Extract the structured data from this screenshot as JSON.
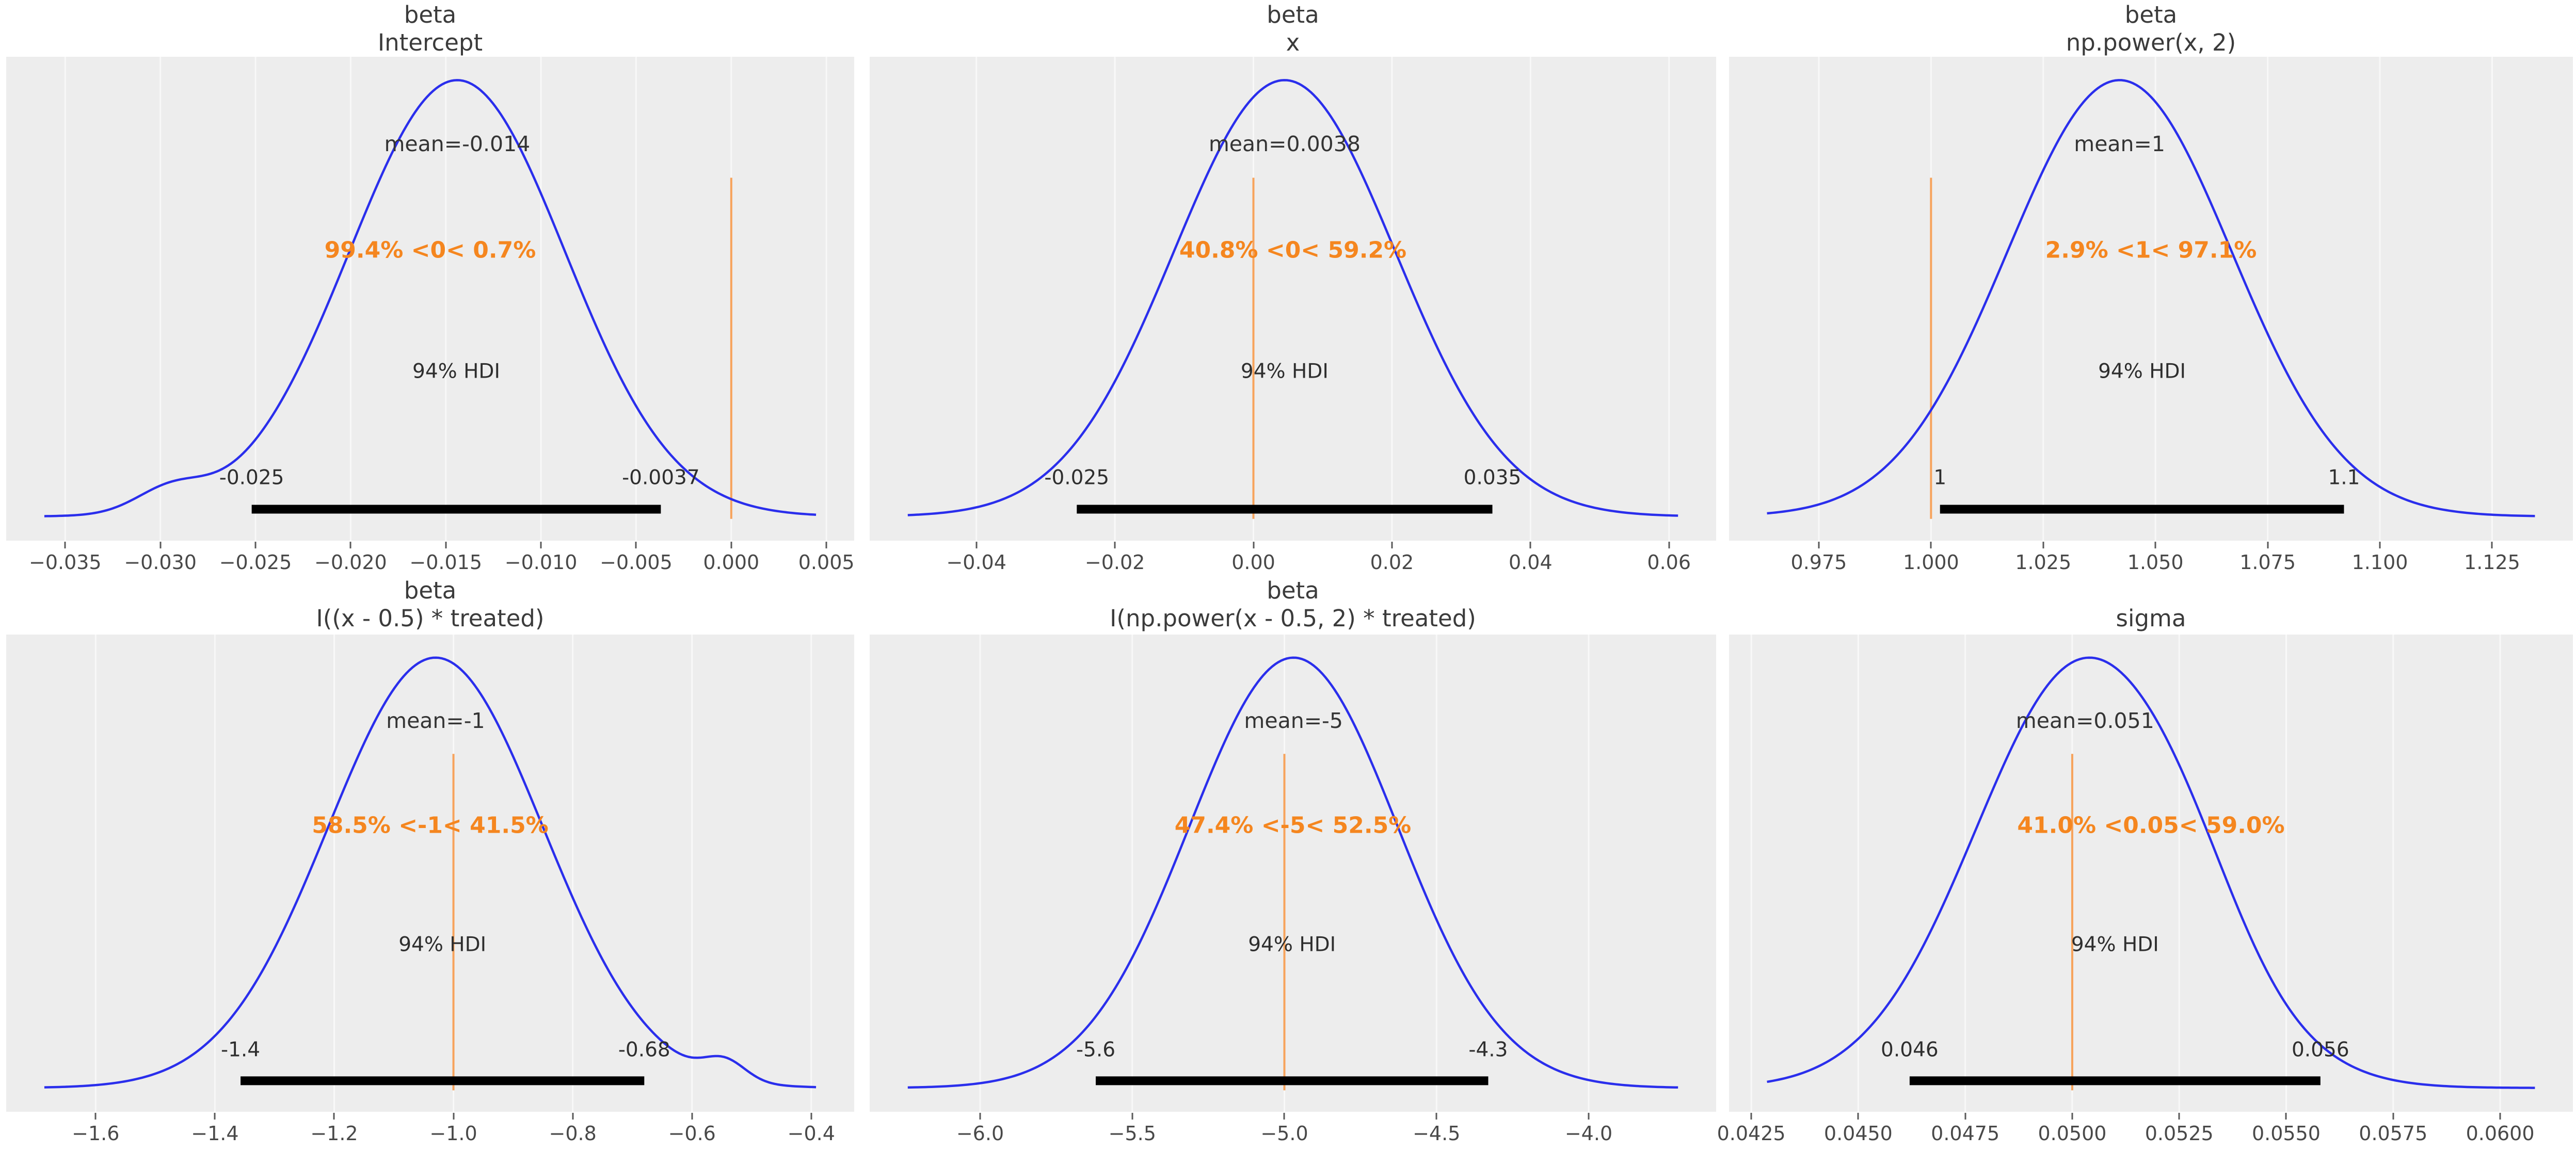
{
  "figure": {
    "background": "#ffffff",
    "plot_background": "#ededed",
    "grid_color": "#f8f8f8",
    "curve_color": "#2a2eec",
    "ref_line_color": "#f7a35c",
    "ref_text_color": "#f5861f",
    "hdi_bar_color": "#000000",
    "hdi_probability": "94%"
  },
  "chart_data": [
    {
      "type": "area",
      "title_line1": "beta",
      "title_line2": "Intercept",
      "mean_label": "mean=-0.014",
      "mean_value": -0.014,
      "ref_text": "99.4% <0< 0.7%",
      "ref_value": 0.0,
      "hdi_text": "94% HDI",
      "hdi_lo": -0.0252,
      "hdi_hi": -0.0037,
      "hdi_lo_label": "-0.025",
      "hdi_hi_label": "-0.0037",
      "xlim": [
        -0.0381,
        0.00646
      ],
      "peak": -0.0144,
      "sd": 0.00567,
      "bumps": [
        {
          "x": -0.0295,
          "amp": 0.05,
          "sd": 0.0018
        }
      ],
      "ticks": [
        {
          "v": -0.035,
          "label": "−0.035"
        },
        {
          "v": -0.03,
          "label": "−0.030"
        },
        {
          "v": -0.025,
          "label": "−0.025"
        },
        {
          "v": -0.02,
          "label": "−0.020"
        },
        {
          "v": -0.015,
          "label": "−0.015"
        },
        {
          "v": -0.01,
          "label": "−0.010"
        },
        {
          "v": -0.005,
          "label": "−0.005"
        },
        {
          "v": 0.0,
          "label": "0.000"
        },
        {
          "v": 0.005,
          "label": "0.005"
        }
      ]
    },
    {
      "type": "area",
      "title_line1": "beta",
      "title_line2": "x",
      "mean_label": "mean=0.0038",
      "mean_value": 0.0038,
      "ref_text": "40.8% <0< 59.2%",
      "ref_value": 0.0,
      "hdi_text": "94% HDI",
      "hdi_lo": -0.0255,
      "hdi_hi": 0.0345,
      "hdi_lo_label": "-0.025",
      "hdi_hi_label": "0.035",
      "xlim": [
        -0.0554,
        0.0668
      ],
      "peak": 0.0045,
      "sd": 0.016,
      "bumps": [],
      "ticks": [
        {
          "v": -0.04,
          "label": "−0.04"
        },
        {
          "v": -0.02,
          "label": "−0.02"
        },
        {
          "v": 0.0,
          "label": "0.00"
        },
        {
          "v": 0.02,
          "label": "0.02"
        },
        {
          "v": 0.04,
          "label": "0.04"
        },
        {
          "v": 0.06,
          "label": "0.06"
        }
      ]
    },
    {
      "type": "area",
      "title_line1": "beta",
      "title_line2": "np.power(x, 2)",
      "mean_label": "mean=1",
      "mean_value": 1,
      "ref_text": "2.9% <1< 97.1%",
      "ref_value": 1.0,
      "hdi_text": "94% HDI",
      "hdi_lo": 1.002,
      "hdi_hi": 1.092,
      "hdi_lo_label": "1",
      "hdi_hi_label": "1.1",
      "xlim": [
        0.955,
        1.143
      ],
      "peak": 1.042,
      "sd": 0.025,
      "bumps": [],
      "ticks": [
        {
          "v": 0.975,
          "label": "0.975"
        },
        {
          "v": 1.0,
          "label": "1.000"
        },
        {
          "v": 1.025,
          "label": "1.025"
        },
        {
          "v": 1.05,
          "label": "1.050"
        },
        {
          "v": 1.075,
          "label": "1.075"
        },
        {
          "v": 1.1,
          "label": "1.100"
        },
        {
          "v": 1.125,
          "label": "1.125"
        }
      ]
    },
    {
      "type": "area",
      "title_line1": "beta",
      "title_line2": "I((x - 0.5) * treated)",
      "mean_label": "mean=-1",
      "mean_value": -1,
      "ref_text": "58.5% <-1< 41.5%",
      "ref_value": -1.0,
      "hdi_text": "94% HDI",
      "hdi_lo": -1.357,
      "hdi_hi": -0.68,
      "hdi_lo_label": "-1.4",
      "hdi_hi_label": "-0.68",
      "xlim": [
        -1.75,
        -0.328
      ],
      "peak": -1.03,
      "sd": 0.18,
      "bumps": [
        {
          "x": -0.545,
          "amp": 0.045,
          "sd": 0.035
        }
      ],
      "ticks": [
        {
          "v": -1.6,
          "label": "−1.6"
        },
        {
          "v": -1.4,
          "label": "−1.4"
        },
        {
          "v": -1.2,
          "label": "−1.2"
        },
        {
          "v": -1.0,
          "label": "−1.0"
        },
        {
          "v": -0.8,
          "label": "−0.8"
        },
        {
          "v": -0.6,
          "label": "−0.6"
        },
        {
          "v": -0.4,
          "label": "−0.4"
        }
      ]
    },
    {
      "type": "area",
      "title_line1": "beta",
      "title_line2": "I(np.power(x - 0.5, 2) * treated)",
      "mean_label": "mean=-5",
      "mean_value": -5,
      "ref_text": "47.4% <-5< 52.5%",
      "ref_value": -5.0,
      "hdi_text": "94% HDI",
      "hdi_lo": -5.62,
      "hdi_hi": -4.33,
      "hdi_lo_label": "-5.6",
      "hdi_hi_label": "-4.3",
      "xlim": [
        -6.363,
        -3.581
      ],
      "peak": -4.97,
      "sd": 0.343,
      "bumps": [],
      "ticks": [
        {
          "v": -6.0,
          "label": "−6.0"
        },
        {
          "v": -5.5,
          "label": "−5.5"
        },
        {
          "v": -5.0,
          "label": "−5.0"
        },
        {
          "v": -4.5,
          "label": "−4.5"
        },
        {
          "v": -4.0,
          "label": "−4.0"
        }
      ]
    },
    {
      "type": "area",
      "title_line1": "",
      "title_line2": "sigma",
      "mean_label": "mean=0.051",
      "mean_value": 0.051,
      "ref_text": "41.0% <0.05< 59.0%",
      "ref_value": 0.05,
      "hdi_text": "94% HDI",
      "hdi_lo": 0.0462,
      "hdi_hi": 0.0558,
      "hdi_lo_label": "0.046",
      "hdi_hi_label": "0.056",
      "xlim": [
        0.04198,
        0.0617
      ],
      "peak": 0.0503,
      "sd": 0.00255,
      "bumps": [
        {
          "x": 0.0528,
          "amp": 0.07,
          "sd": 0.0012
        }
      ],
      "ticks": [
        {
          "v": 0.0425,
          "label": "0.0425"
        },
        {
          "v": 0.045,
          "label": "0.0450"
        },
        {
          "v": 0.0475,
          "label": "0.0475"
        },
        {
          "v": 0.05,
          "label": "0.0500"
        },
        {
          "v": 0.0525,
          "label": "0.0525"
        },
        {
          "v": 0.055,
          "label": "0.0550"
        },
        {
          "v": 0.0575,
          "label": "0.0575"
        },
        {
          "v": 0.06,
          "label": "0.0600"
        }
      ]
    }
  ]
}
